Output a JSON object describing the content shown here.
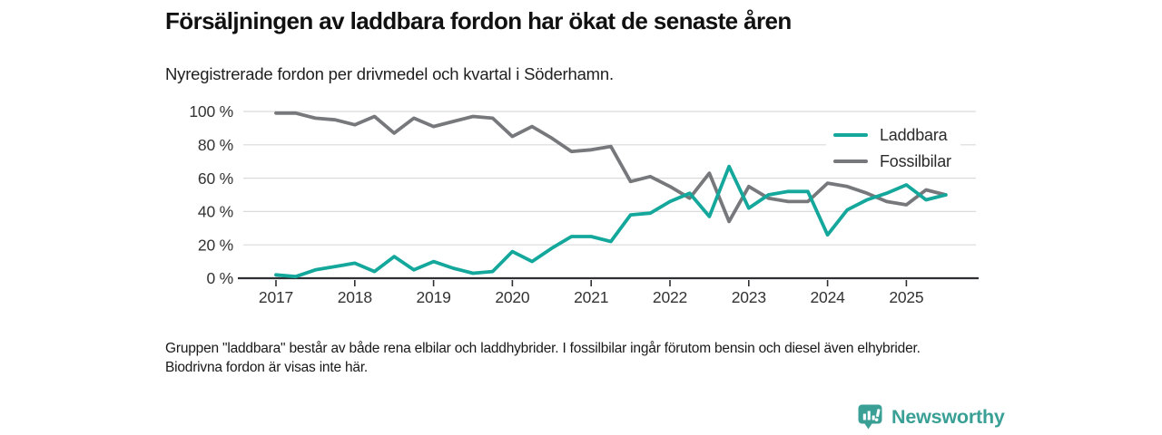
{
  "header": {
    "title": "Försäljningen av laddbara fordon har ökat de senaste åren",
    "subtitle": "Nyregistrerade fordon per drivmedel och kvartal i Söderhamn."
  },
  "chart_data": {
    "type": "line",
    "title": "Försäljningen av laddbara fordon har ökat de senaste åren",
    "subtitle": "Nyregistrerade fordon per drivmedel och kvartal i Söderhamn.",
    "x_frequency": "quarterly",
    "x_start": "2017 Q1",
    "x_end": "2025 Q3",
    "x_tick_labels": [
      "2017",
      "2018",
      "2019",
      "2020",
      "2021",
      "2022",
      "2023",
      "2024",
      "2025"
    ],
    "y_tick_values": [
      100,
      80,
      60,
      40,
      20,
      0
    ],
    "y_tick_labels": [
      "100 %",
      "80 %",
      "60 %",
      "40 %",
      "20 %",
      "0 %"
    ],
    "ylim": [
      0,
      100
    ],
    "grid": "horizontal",
    "legend_position": "upper-right-inside",
    "series": [
      {
        "name": "Laddbara",
        "color": "#14a79b",
        "values": [
          2,
          1,
          5,
          7,
          9,
          4,
          13,
          5,
          10,
          6,
          3,
          4,
          16,
          10,
          18,
          25,
          25,
          22,
          38,
          39,
          46,
          51,
          37,
          67,
          42,
          50,
          52,
          52,
          26,
          41,
          47,
          51,
          56,
          47,
          50
        ]
      },
      {
        "name": "Fossilbilar",
        "color": "#76787b",
        "values": [
          99,
          99,
          96,
          95,
          92,
          97,
          87,
          96,
          91,
          94,
          97,
          96,
          85,
          91,
          84,
          76,
          77,
          79,
          58,
          61,
          55,
          48,
          63,
          34,
          55,
          48,
          46,
          46,
          57,
          55,
          51,
          46,
          44,
          53,
          50
        ]
      }
    ]
  },
  "footnote": {
    "text": "Gruppen \"laddbara\" består av både rena elbilar och laddhybrider. I fossilbilar ingår förutom bensin och diesel även elhybrider. Biodrivna fordon är visas inte här."
  },
  "logo": {
    "text": "Newsworthy",
    "color": "#3aa096",
    "icon": "newsworthy-pin-bar-chart-icon"
  },
  "colors": {
    "axis": "#2e2f33",
    "gridline": "#dadada",
    "tick_label": "#333333"
  }
}
